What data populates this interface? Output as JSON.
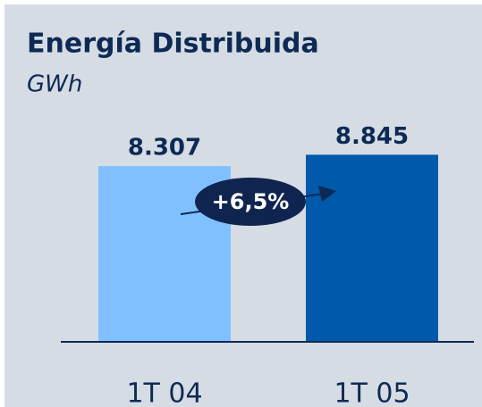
{
  "chart_data": {
    "type": "bar",
    "title": "Energía Distribuida",
    "subtitle": "GWh",
    "categories": [
      "1T 04",
      "1T 05"
    ],
    "values": [
      8307,
      8845
    ],
    "value_labels": [
      "8.307",
      "8.845"
    ],
    "colors": [
      "#80c0ff",
      "#0059aa"
    ],
    "annotation": "+6,5%",
    "ylim": [
      0,
      10000
    ]
  }
}
